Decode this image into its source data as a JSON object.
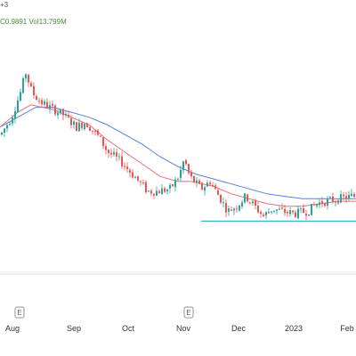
{
  "legend": {
    "line1": "+3",
    "close_text": "C0.9891",
    "volume_text": "Vol13.799M"
  },
  "chart_data": {
    "type": "candlestick",
    "x_tick_labels": [
      "Aug",
      "Sep",
      "Oct",
      "Nov",
      "Dec",
      "2023",
      "Feb"
    ],
    "earnings_markers": [
      "E",
      "E"
    ],
    "colors": {
      "up": "#26a69a",
      "down": "#ef5350",
      "ma_fast": "#e8707a",
      "ma_slow": "#5b7fe0",
      "support_line": "#1aa5b8",
      "grid": "#e8e8e8",
      "axis_text": "#333333",
      "axis_line": "#e0e0e0"
    },
    "y_range": [
      0.55,
      1.45
    ],
    "support_level": 0.7,
    "trend": [
      [
        0,
        1.05
      ],
      [
        12,
        1.12
      ],
      [
        22,
        1.22
      ],
      [
        28,
        1.3
      ],
      [
        35,
        1.22
      ],
      [
        45,
        1.18
      ],
      [
        60,
        1.15
      ],
      [
        70,
        1.13
      ],
      [
        85,
        1.08
      ],
      [
        95,
        1.1
      ],
      [
        110,
        1.04
      ],
      [
        120,
        0.98
      ],
      [
        135,
        0.94
      ],
      [
        150,
        0.88
      ],
      [
        165,
        0.82
      ],
      [
        175,
        0.82
      ],
      [
        190,
        0.83
      ],
      [
        200,
        0.88
      ],
      [
        206,
        0.95
      ],
      [
        212,
        0.88
      ],
      [
        225,
        0.83
      ],
      [
        235,
        0.86
      ],
      [
        245,
        0.8
      ],
      [
        255,
        0.74
      ],
      [
        265,
        0.76
      ],
      [
        275,
        0.8
      ],
      [
        285,
        0.76
      ],
      [
        295,
        0.72
      ],
      [
        305,
        0.75
      ],
      [
        315,
        0.74
      ],
      [
        330,
        0.73
      ],
      [
        345,
        0.74
      ],
      [
        355,
        0.77
      ],
      [
        365,
        0.78
      ],
      [
        380,
        0.79
      ],
      [
        395,
        0.8
      ]
    ],
    "ma_fast": [
      [
        0,
        1.08
      ],
      [
        20,
        1.14
      ],
      [
        35,
        1.17
      ],
      [
        60,
        1.15
      ],
      [
        80,
        1.12
      ],
      [
        100,
        1.09
      ],
      [
        120,
        1.03
      ],
      [
        140,
        0.98
      ],
      [
        160,
        0.93
      ],
      [
        180,
        0.88
      ],
      [
        200,
        0.86
      ],
      [
        215,
        0.86
      ],
      [
        240,
        0.84
      ],
      [
        260,
        0.81
      ],
      [
        280,
        0.79
      ],
      [
        300,
        0.77
      ],
      [
        320,
        0.76
      ],
      [
        340,
        0.76
      ],
      [
        360,
        0.77
      ],
      [
        380,
        0.78
      ],
      [
        400,
        0.78
      ]
    ],
    "ma_slow": [
      [
        0,
        1.08
      ],
      [
        20,
        1.12
      ],
      [
        40,
        1.16
      ],
      [
        60,
        1.16
      ],
      [
        80,
        1.14
      ],
      [
        100,
        1.12
      ],
      [
        120,
        1.09
      ],
      [
        140,
        1.05
      ],
      [
        160,
        1.01
      ],
      [
        180,
        0.96
      ],
      [
        200,
        0.92
      ],
      [
        220,
        0.89
      ],
      [
        240,
        0.87
      ],
      [
        260,
        0.85
      ],
      [
        280,
        0.83
      ],
      [
        300,
        0.81
      ],
      [
        320,
        0.8
      ],
      [
        340,
        0.79
      ],
      [
        360,
        0.79
      ],
      [
        380,
        0.79
      ],
      [
        400,
        0.79
      ]
    ]
  }
}
